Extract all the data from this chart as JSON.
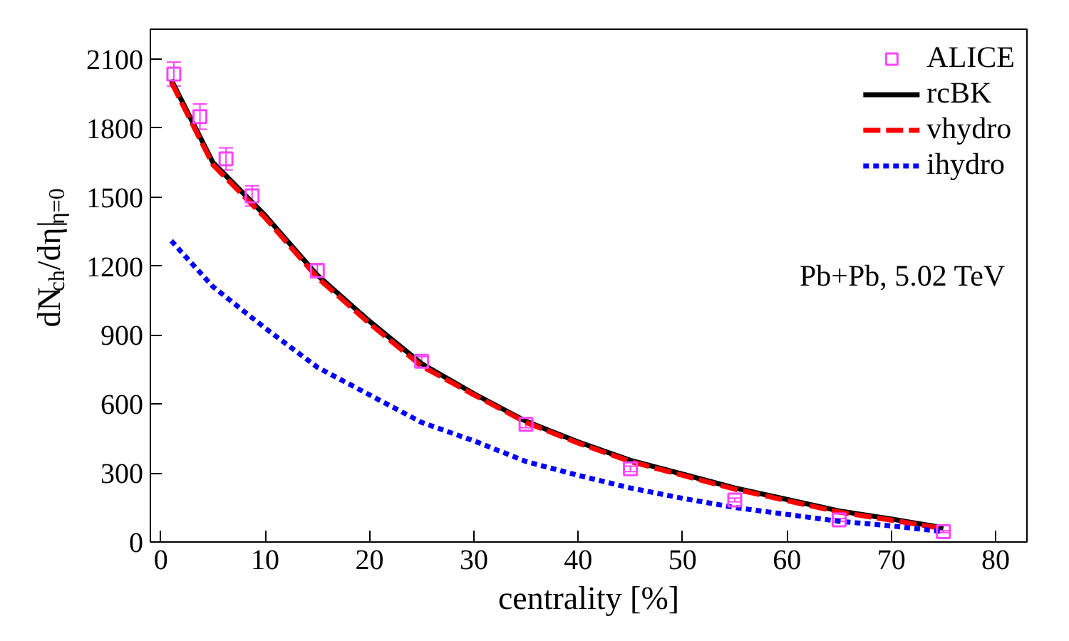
{
  "chart_data": {
    "type": "line",
    "xlabel": "centrality [%]",
    "ylabel": "dN$_{ch}$/dη|$_{η=0}$",
    "xlim": [
      -1,
      83
    ],
    "ylim": [
      0,
      2230
    ],
    "xticks": [
      0,
      10,
      20,
      30,
      40,
      50,
      60,
      70,
      80
    ],
    "yticks": [
      0,
      300,
      600,
      900,
      1200,
      1500,
      1800,
      2100
    ],
    "grid": false,
    "legend": "top right",
    "annotations": [
      "Pb+Pb, 5.02 TeV"
    ],
    "series": [
      {
        "name": "ALICE",
        "type": "scatter",
        "marker": "square",
        "color": "#ff44ff",
        "x": [
          1.25,
          3.75,
          6.25,
          8.75,
          15,
          25,
          35,
          45,
          55,
          65,
          75
        ],
        "values": [
          2035,
          1850,
          1666,
          1505,
          1180,
          786,
          512,
          318,
          183,
          96,
          45
        ],
        "errors": [
          52,
          55,
          48,
          44,
          31,
          20,
          15,
          12,
          8,
          6,
          4
        ]
      },
      {
        "name": "rcBK",
        "type": "line",
        "line_style": "solid",
        "color": "#000000",
        "x": [
          1,
          5,
          10,
          15,
          20,
          25,
          30,
          35,
          40,
          45,
          50,
          55,
          60,
          65,
          70,
          75
        ],
        "values": [
          2010,
          1650,
          1420,
          1160,
          960,
          775,
          645,
          525,
          435,
          355,
          295,
          235,
          185,
          135,
          100,
          62
        ]
      },
      {
        "name": "vhydro",
        "type": "line",
        "line_style": "dashed",
        "color": "#ff0000",
        "x": [
          1,
          5,
          10,
          15,
          20,
          25,
          30,
          35,
          40,
          45,
          50,
          55,
          60,
          65,
          70,
          75
        ],
        "values": [
          2000,
          1640,
          1410,
          1150,
          950,
          765,
          640,
          520,
          430,
          350,
          290,
          230,
          180,
          130,
          95,
          58
        ]
      },
      {
        "name": "ihydro",
        "type": "line",
        "line_style": "dotted",
        "color": "#0000ff",
        "x": [
          1,
          5,
          10,
          15,
          20,
          25,
          30,
          35,
          40,
          45,
          50,
          55,
          60,
          65,
          70,
          75
        ],
        "values": [
          1310,
          1110,
          930,
          760,
          640,
          520,
          440,
          350,
          290,
          235,
          190,
          150,
          120,
          90,
          70,
          45
        ]
      }
    ]
  }
}
